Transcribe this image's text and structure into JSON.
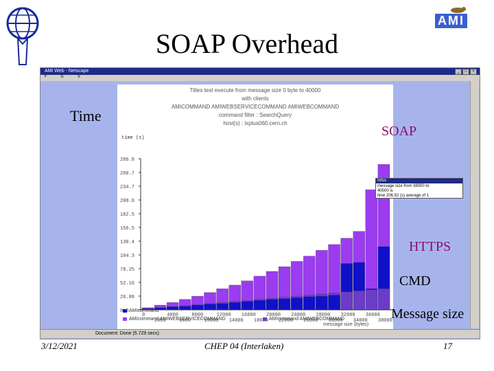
{
  "slide": {
    "title": "SOAP Overhead",
    "footer_date": "3/12/2021",
    "footer_center": "CHEP 04 (Interlaken)",
    "footer_page": "17",
    "annotation_time": "Time",
    "annotation_soap": "SOAP",
    "annotation_https": "HTTPS",
    "annotation_cmd": "CMD",
    "annotation_message_size": "Message size"
  },
  "logos": {
    "right_logo_text": "AMI"
  },
  "window": {
    "title": "AMI Web - Netscape",
    "toolbar_items": [
      "F",
      "E",
      "V"
    ],
    "status_text": "Document: Done (5.729 secs)"
  },
  "chart_data": {
    "type": "bar",
    "title_lines": [
      "Titles test execute from message size 0 byte to 40000",
      "with clients",
      "AMICOMMAND AMIWEBSERVICECOMMAND AMIWEBCOMMAND",
      "command filter : SearchQuery",
      "host(s) : lxplus060.cern.ch"
    ],
    "ylabel": "time (s)",
    "xlabel": "message size (bytes)",
    "yticks": [
      "0.0",
      "26.08",
      "52.16",
      "78.25",
      "104.3",
      "130.4",
      "156.5",
      "182.5",
      "208.6",
      "234.7",
      "260.7",
      "286.8"
    ],
    "ylim": [
      0,
      286.8
    ],
    "x_tick_labels_top": [
      "0",
      "4000",
      "8000",
      "12000",
      "16000",
      "20000",
      "24000",
      "28000",
      "32000",
      "36000"
    ],
    "x_tick_labels_bottom": [
      "2000",
      "6000",
      "10000",
      "14000",
      "18000",
      "22000",
      "26000",
      "30000",
      "34000",
      "38000"
    ],
    "categories": [
      "0",
      "2000",
      "4000",
      "6000",
      "8000",
      "10000",
      "12000",
      "14000",
      "16000",
      "18000",
      "20000",
      "22000",
      "24000",
      "26000",
      "28000",
      "30000",
      "32000",
      "34000",
      "36000",
      "38000"
    ],
    "series": [
      {
        "name": "AMIcommand",
        "color": "#1010c8",
        "values": [
          3,
          4,
          6,
          7,
          9,
          11,
          12,
          14,
          16,
          18,
          20,
          21,
          23,
          25,
          26,
          28,
          88,
          90,
          40,
          120
        ]
      },
      {
        "name": "AMIcommand AMIWEBSERVICECOMMAND",
        "color": "#9b3cf0",
        "values": [
          4,
          9,
          14,
          20,
          26,
          33,
          40,
          47,
          55,
          64,
          73,
          82,
          92,
          102,
          113,
          124,
          136,
          149,
          228,
          276
        ]
      },
      {
        "name": "AMIcommand AMIWEBCOMMAND",
        "color": "#6a3cc8",
        "values": [
          2,
          4,
          6,
          8,
          10,
          12,
          14,
          16,
          18,
          20,
          22,
          24,
          26,
          28,
          30,
          32,
          34,
          36,
          38,
          40
        ]
      }
    ],
    "legend": [
      "AMIcommand",
      "AMIcommand AMIWEBSERVICECOMMAND",
      "AMIcommand AMIWEBCOMMAND"
    ],
    "tooltip": {
      "head": "Infos",
      "line1": "message size from 38000 to",
      "line2": "40000 is",
      "line3": "time 206.52 (s) average of 1"
    }
  }
}
